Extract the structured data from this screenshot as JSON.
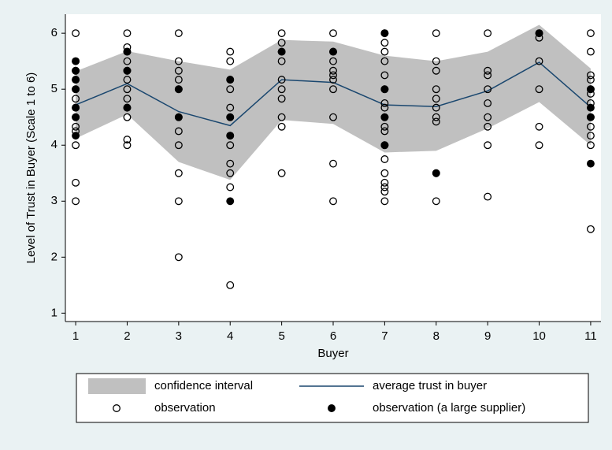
{
  "chart_data": {
    "type": "line",
    "x_label": "Buyer",
    "y_label": "Level of Trust in Buyer (Scale 1 to 6)",
    "xlim": [
      0.8,
      11.2
    ],
    "ylim": [
      0.85,
      6.34
    ],
    "xticks": [
      1,
      2,
      3,
      4,
      5,
      6,
      7,
      8,
      9,
      10,
      11
    ],
    "yticks": [
      1,
      2,
      3,
      4,
      5,
      6
    ],
    "grid": false,
    "legend": "bottom",
    "series": [
      {
        "name": "confidence interval",
        "type": "band",
        "color": "#c0c0c0",
        "x": [
          1,
          2,
          3,
          4,
          5,
          6,
          7,
          8,
          9,
          10,
          11
        ],
        "upper": [
          5.32,
          5.68,
          5.5,
          5.35,
          5.88,
          5.85,
          5.6,
          5.5,
          5.67,
          6.15,
          5.37
        ],
        "lower": [
          4.12,
          4.55,
          3.7,
          3.38,
          4.45,
          4.38,
          3.87,
          3.9,
          4.3,
          4.77,
          4.0
        ]
      },
      {
        "name": "average trust in buyer",
        "type": "line",
        "color": "#1a476f",
        "x": [
          1,
          2,
          3,
          4,
          5,
          6,
          7,
          8,
          9,
          10,
          11
        ],
        "values": [
          4.72,
          5.1,
          4.6,
          4.35,
          5.17,
          5.12,
          4.72,
          4.69,
          4.97,
          5.48,
          4.68
        ]
      },
      {
        "name": "observation",
        "type": "scatter",
        "marker": "hollow",
        "color": "#000000",
        "x": [
          1,
          1,
          1,
          1,
          1,
          1,
          1,
          1,
          1,
          1,
          1,
          1,
          1,
          2,
          2,
          2,
          2,
          2,
          2,
          2,
          2,
          2,
          2,
          2,
          2,
          3,
          3,
          3,
          3,
          3,
          3,
          3,
          3,
          3,
          3,
          3,
          4,
          4,
          4,
          4,
          4,
          4,
          4,
          4,
          4,
          4,
          4,
          4,
          5,
          5,
          5,
          5,
          5,
          5,
          5,
          5,
          5,
          5,
          6,
          6,
          6,
          6,
          6,
          6,
          6,
          6,
          6,
          6,
          7,
          7,
          7,
          7,
          7,
          7,
          7,
          7,
          7,
          7,
          7,
          7,
          7,
          7,
          7,
          7,
          7,
          7,
          8,
          8,
          8,
          8,
          8,
          8,
          8,
          8,
          8,
          8,
          9,
          9,
          9,
          9,
          9,
          9,
          9,
          9,
          9,
          10,
          10,
          10,
          10,
          10,
          10,
          11,
          11,
          11,
          11,
          11,
          11,
          11,
          11,
          11,
          11,
          11,
          11
        ],
        "values": [
          6,
          5.5,
          5.33,
          5.17,
          5,
          4.83,
          4.67,
          4.5,
          4.33,
          4.25,
          4,
          3.33,
          3,
          6,
          5.75,
          5.67,
          5.5,
          5.33,
          5.17,
          5,
          4.83,
          4.67,
          4.5,
          4.1,
          4,
          6,
          5.5,
          5.33,
          5.17,
          5,
          4.5,
          4.25,
          4,
          3.5,
          3,
          2,
          5.67,
          5.5,
          5.17,
          5,
          4.67,
          4.5,
          4.17,
          4,
          3.67,
          3.5,
          3.25,
          1.5,
          6,
          5.83,
          5.67,
          5.5,
          5.17,
          5,
          4.83,
          4.5,
          4.33,
          3.5,
          6,
          5.67,
          5.5,
          5.33,
          5.25,
          5.17,
          5,
          4.5,
          3.67,
          3,
          6,
          5.83,
          5.67,
          5.5,
          5.25,
          5,
          4.75,
          4.67,
          4.5,
          4.33,
          4.25,
          4,
          3.75,
          3.5,
          3.33,
          3.25,
          3.17,
          3,
          6,
          5.5,
          5.33,
          5,
          4.83,
          4.67,
          4.5,
          4.42,
          3.5,
          3,
          6,
          5.33,
          5.25,
          5,
          4.75,
          4.5,
          4.33,
          4,
          3.08,
          6,
          5.92,
          5.5,
          5,
          4.33,
          4,
          6,
          5.67,
          5.25,
          5.17,
          5,
          4.92,
          4.75,
          4.5,
          4.33,
          4.17,
          4,
          2.5
        ]
      },
      {
        "name": "observation (a large supplier)",
        "type": "scatter",
        "marker": "filled",
        "color": "#000000",
        "x": [
          1,
          1,
          1,
          1,
          1,
          1,
          1,
          2,
          2,
          2,
          3,
          3,
          4,
          4,
          4,
          4,
          5,
          6,
          7,
          7,
          7,
          7,
          8,
          10,
          11,
          11,
          11,
          11
        ],
        "values": [
          5.5,
          5.33,
          5.17,
          5,
          4.67,
          4.5,
          4.17,
          5.67,
          5.33,
          4.67,
          5,
          4.5,
          5.17,
          4.5,
          4.17,
          3,
          5.67,
          5.67,
          6,
          5,
          4.5,
          4,
          3.5,
          6,
          5,
          4.67,
          4.5,
          3.67
        ]
      }
    ]
  }
}
